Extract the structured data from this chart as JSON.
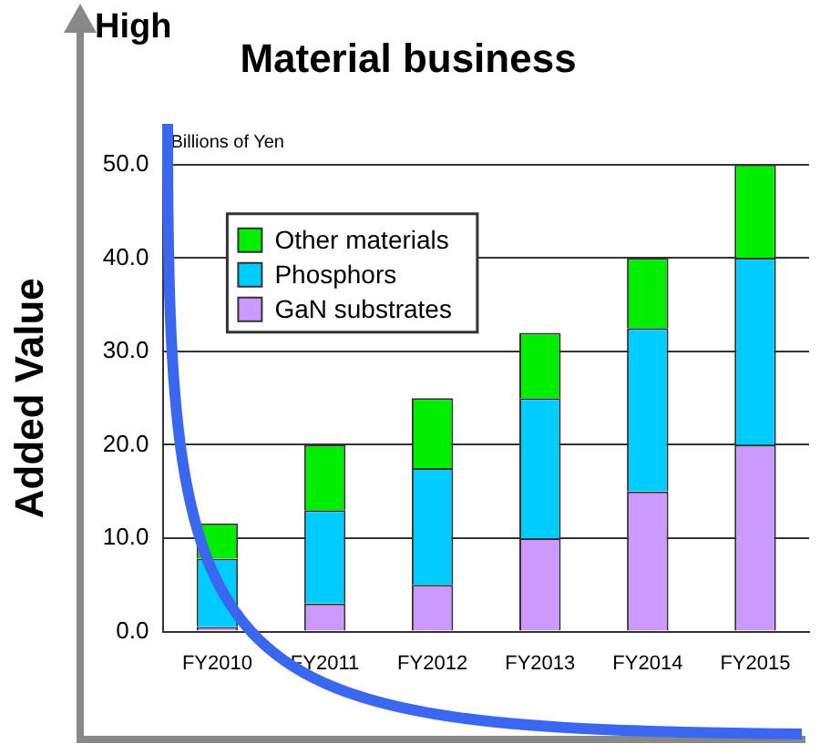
{
  "chart_data": {
    "type": "bar",
    "title": "Material business",
    "ylabel": "Added Value",
    "annotations": [
      "Billions of Yen",
      "High"
    ],
    "categories": [
      "FY2010",
      "FY2011",
      "FY2012",
      "FY2013",
      "FY2014",
      "FY2015"
    ],
    "stacked": true,
    "series": [
      {
        "name": "GaN substrates",
        "color": "#cc99ff",
        "values": [
          0.5,
          3,
          5,
          10,
          15,
          20
        ]
      },
      {
        "name": "Phosphors",
        "color": "#00ccff",
        "values": [
          7.3,
          10,
          12.5,
          15,
          17.5,
          20
        ]
      },
      {
        "name": "Other materials",
        "color": "#00ee00",
        "values": [
          3.8,
          7,
          7.5,
          7,
          7.5,
          10
        ]
      }
    ],
    "ylim": [
      0,
      50
    ],
    "yticks": [
      {
        "value": 0,
        "label": "0.0"
      },
      {
        "value": 10,
        "label": "10.0"
      },
      {
        "value": 20,
        "label": "20.0"
      },
      {
        "value": 30,
        "label": "30.0"
      },
      {
        "value": 40,
        "label": "40.0"
      },
      {
        "value": 50,
        "label": "50.0"
      }
    ],
    "grid": "y",
    "legend": "top left"
  }
}
